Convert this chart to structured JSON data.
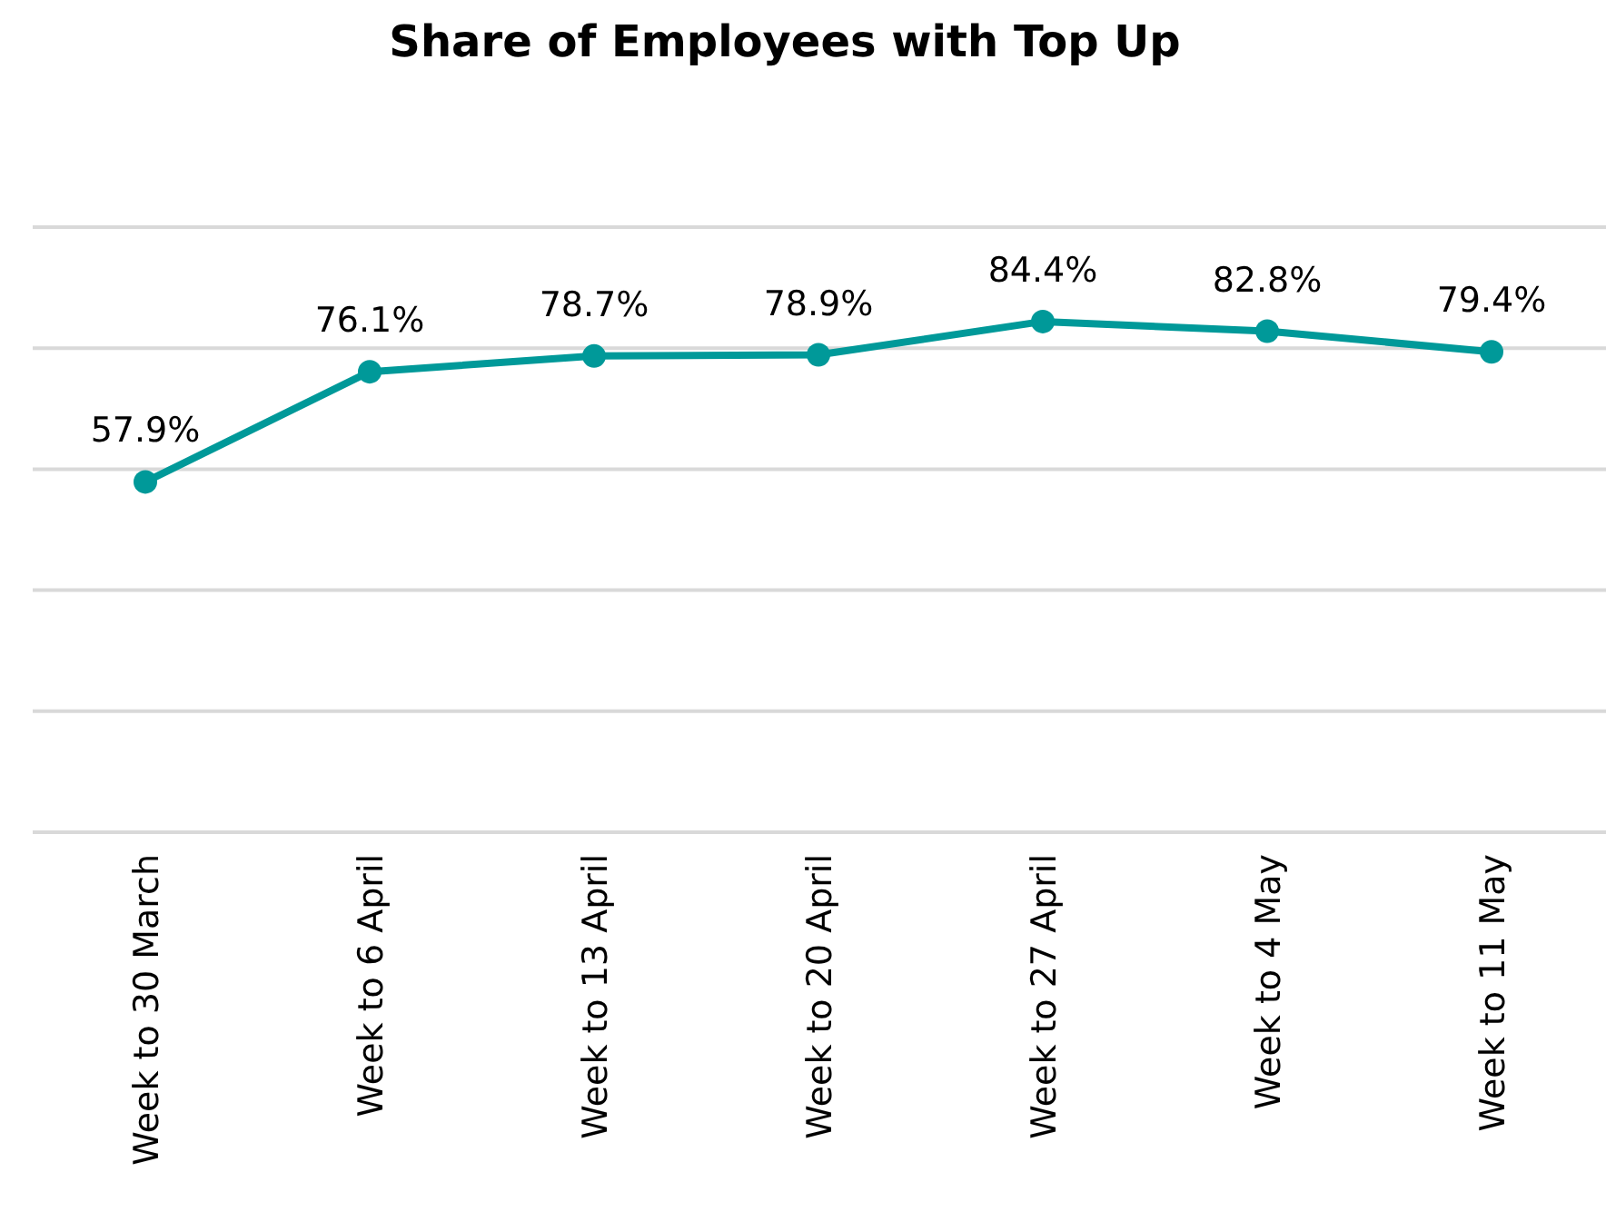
{
  "chart_data": {
    "type": "line",
    "title": "Share of Employees with Top Up",
    "categories": [
      "Week to 30 March",
      "Week to 6 April",
      "Week to 13 April",
      "Week to 20 April",
      "Week to 27 April",
      "Week to 4 May",
      "Week to 11 May"
    ],
    "series": [
      {
        "color": "#009999",
        "values": [
          57.9,
          76.1,
          78.7,
          78.9,
          84.4,
          82.8,
          79.4
        ],
        "value_labels": [
          "57.9%",
          "76.1%",
          "78.7%",
          "78.9%",
          "84.4%",
          "82.8%",
          "79.4%"
        ]
      }
    ],
    "ylim": [
      0,
      100
    ],
    "yticks": [
      {
        "value": 0,
        "label": null
      },
      {
        "value": 20,
        "label": null
      },
      {
        "value": 40,
        "label": null
      },
      {
        "value": 60,
        "label": null
      },
      {
        "value": 80,
        "label": null
      },
      {
        "value": 100,
        "label": null
      }
    ],
    "tick_labels": "x",
    "grid": "y",
    "marker": "circle",
    "line_style": "solid"
  }
}
